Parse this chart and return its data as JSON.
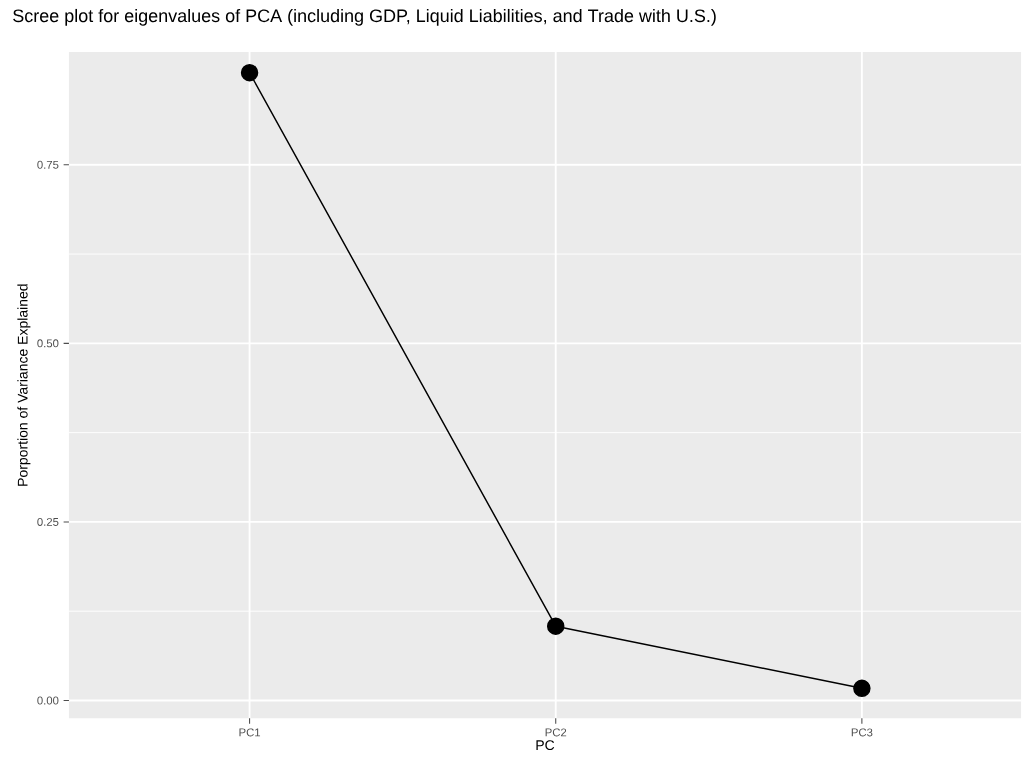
{
  "chart_data": {
    "type": "line",
    "title": "Scree plot for eigenvalues of PCA (including GDP, Liquid Liabilities, and Trade with U.S.)",
    "xlabel": "PC",
    "ylabel": "Porportion of Variance Explained",
    "categories": [
      "PC1",
      "PC2",
      "PC3"
    ],
    "series": [
      {
        "color": "#000000",
        "values": [
          0.879,
          0.104,
          0.017
        ]
      }
    ],
    "ylim": [
      -0.025,
      0.908
    ],
    "yticks": [
      {
        "value": 0,
        "label": "0.00"
      },
      {
        "value": 0.25,
        "label": "0.25"
      },
      {
        "value": 0.5,
        "label": "0.50"
      },
      {
        "value": 0.75,
        "label": "0.75"
      }
    ],
    "grid": true,
    "marker": "circle",
    "line_style": "solid"
  }
}
